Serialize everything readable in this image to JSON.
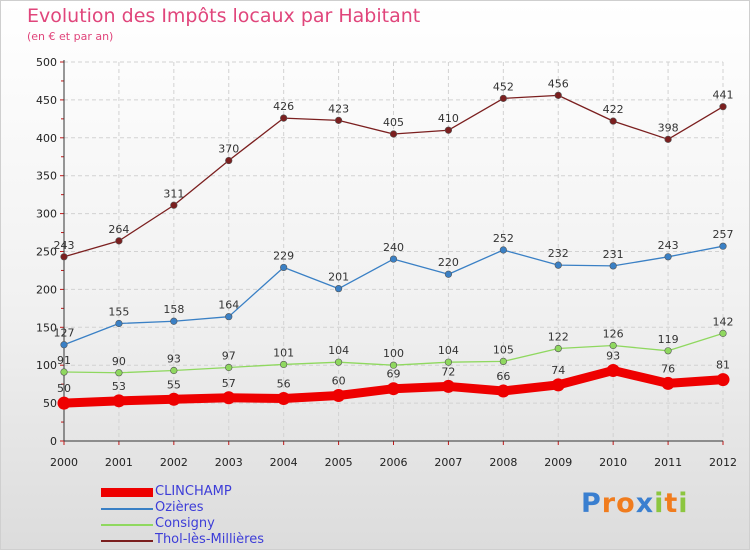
{
  "title": "Evolution des Impôts locaux par Habitant",
  "subtitle": "(en € et par an)",
  "logo": {
    "letters": [
      "P",
      "r",
      "o",
      "x",
      "i",
      "t",
      "i"
    ],
    "colors": [
      "#3a7fd0",
      "#f07c1e",
      "#f07c1e",
      "#3a7fd0",
      "#8cc63f",
      "#f07c1e",
      "#8cc63f"
    ]
  },
  "chart_data": {
    "type": "line",
    "x": [
      "2000",
      "2001",
      "2002",
      "2003",
      "2004",
      "2005",
      "2006",
      "2007",
      "2008",
      "2009",
      "2010",
      "2011",
      "2012"
    ],
    "ylim": [
      0,
      500
    ],
    "yticks": [
      "0",
      "50",
      "100",
      "150",
      "200",
      "250",
      "300",
      "350",
      "400",
      "450",
      "500"
    ],
    "grid": true,
    "legend_placement": "bottom-left",
    "series": [
      {
        "name": "Thol-lès-Millières",
        "color": "#7b1f1f",
        "values": [
          243,
          264,
          311,
          370,
          426,
          423,
          405,
          410,
          452,
          456,
          422,
          398,
          441
        ]
      },
      {
        "name": "Ozières",
        "color": "#3a80c5",
        "values": [
          127,
          155,
          158,
          164,
          229,
          201,
          240,
          220,
          252,
          232,
          231,
          243,
          257
        ]
      },
      {
        "name": "Consigny",
        "color": "#8fd85f",
        "values": [
          91,
          90,
          93,
          97,
          101,
          104,
          100,
          104,
          105,
          122,
          126,
          119,
          142
        ]
      },
      {
        "name": "CLINCHAMP",
        "color": "#ee0000",
        "values": [
          50,
          53,
          55,
          57,
          56,
          60,
          69,
          72,
          66,
          74,
          93,
          76,
          81
        ]
      }
    ],
    "legend": [
      {
        "name": "CLINCHAMP",
        "color": "#ee0000",
        "thick": true
      },
      {
        "name": "Ozières",
        "color": "#3a80c5",
        "thick": false
      },
      {
        "name": "Consigny",
        "color": "#8fd85f",
        "thick": false
      },
      {
        "name": "Thol-lès-Millières",
        "color": "#7b1f1f",
        "thick": false
      }
    ]
  }
}
